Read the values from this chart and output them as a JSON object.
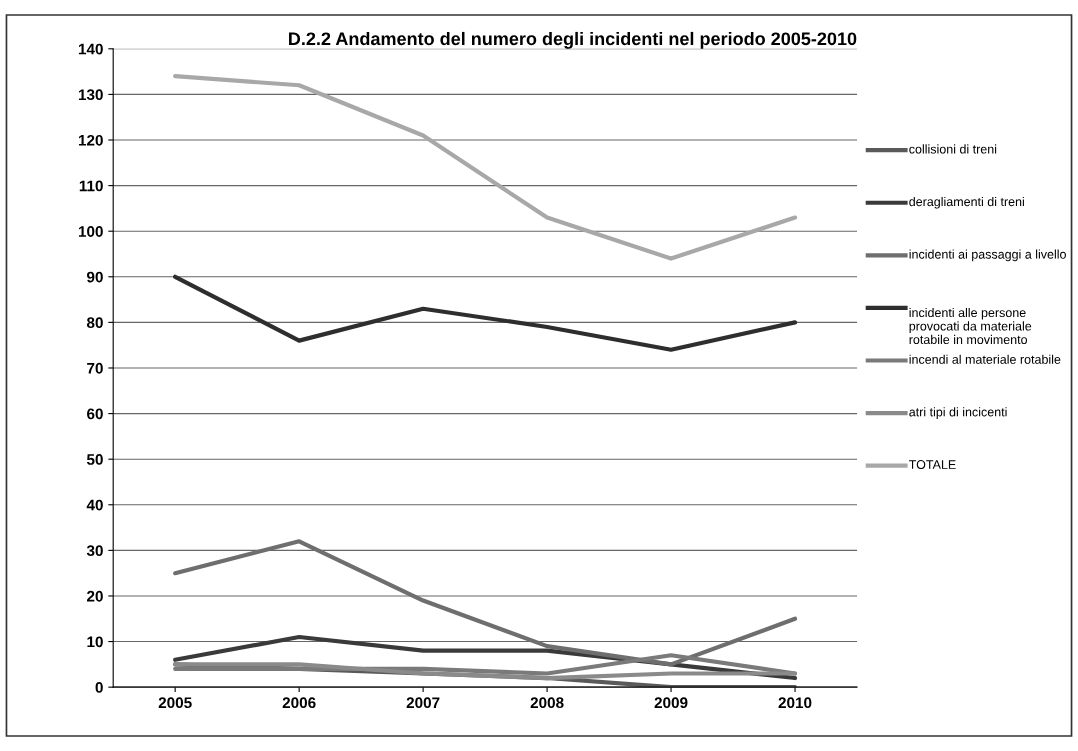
{
  "chart_data": {
    "type": "line",
    "title": "D.2.2 Andamento del numero degli incidenti nel periodo 2005-2010",
    "categories": [
      "2005",
      "2006",
      "2007",
      "2008",
      "2009",
      "2010"
    ],
    "series": [
      {
        "name": "collisioni di treni",
        "color": "#5a5a5a",
        "values": [
          5,
          4,
          3,
          2,
          0,
          0
        ]
      },
      {
        "name": "deragliamenti di treni",
        "color": "#3a3a3a",
        "values": [
          6,
          11,
          8,
          8,
          5,
          2
        ]
      },
      {
        "name": "incidenti ai passaggi a livello",
        "color": "#6e6e6e",
        "values": [
          25,
          32,
          19,
          9,
          5,
          15
        ]
      },
      {
        "name": "incidenti alle persone\nprovocati da materiale\nrotabile in movimento",
        "color": "#2e2e2e",
        "values": [
          90,
          76,
          83,
          79,
          74,
          80
        ]
      },
      {
        "name": "incendi al materiale rotabile",
        "color": "#7a7a7a",
        "values": [
          4,
          4,
          4,
          3,
          7,
          3
        ]
      },
      {
        "name": "atri tipi di incicenti",
        "color": "#8a8a8a",
        "values": [
          5,
          5,
          3,
          2,
          3,
          3
        ]
      },
      {
        "name": "TOTALE",
        "color": "#a8a8a8",
        "values": [
          134,
          132,
          121,
          103,
          94,
          103
        ]
      }
    ],
    "ylim": [
      0,
      140
    ],
    "yticks": [
      0,
      10,
      20,
      30,
      40,
      50,
      60,
      70,
      80,
      90,
      100,
      110,
      120,
      130,
      140
    ],
    "grid": "y",
    "legend": "right",
    "marker": "none",
    "line_style": "solid"
  }
}
